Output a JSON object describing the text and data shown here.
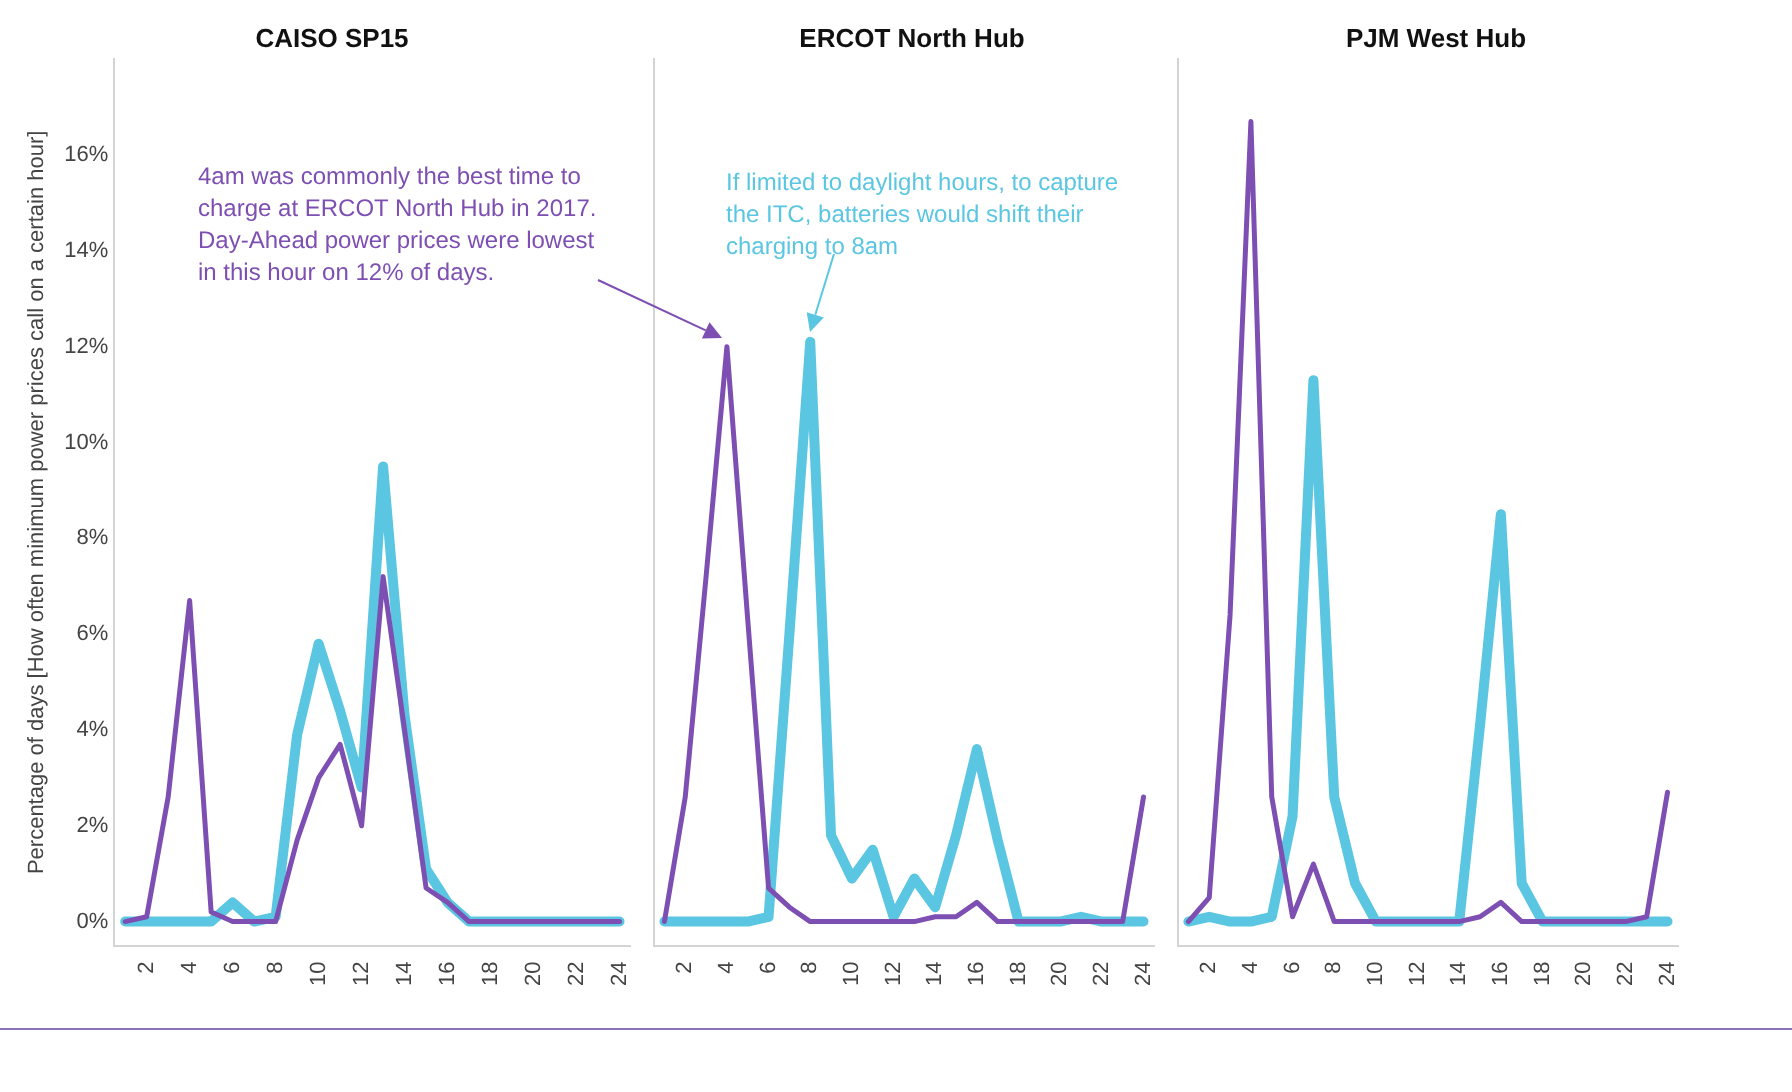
{
  "chart_data": [
    {
      "type": "line",
      "title": "CAISO SP15",
      "ylabel": "Percentage of days [How often minimum power prices call on a certain hour]",
      "x": [
        1,
        2,
        3,
        4,
        5,
        6,
        7,
        8,
        9,
        10,
        11,
        12,
        13,
        14,
        15,
        16,
        17,
        18,
        19,
        20,
        21,
        22,
        23,
        24
      ],
      "xlim": [
        0.5,
        24.5
      ],
      "xticks": [
        2,
        4,
        6,
        8,
        10,
        12,
        14,
        16,
        18,
        20,
        22,
        24
      ],
      "ylim": [
        -0.5,
        18
      ],
      "yticks": [
        {
          "value": 0,
          "label": "0%"
        },
        {
          "value": 2,
          "label": "2%"
        },
        {
          "value": 4,
          "label": "4%"
        },
        {
          "value": 6,
          "label": "6%"
        },
        {
          "value": 8,
          "label": "8%"
        },
        {
          "value": 10,
          "label": "10%"
        },
        {
          "value": 12,
          "label": "12%"
        },
        {
          "value": 14,
          "label": "14%"
        },
        {
          "value": 16,
          "label": "16%"
        }
      ],
      "marker": "none",
      "series": [
        {
          "color": "#7e4fb2",
          "values": [
            0,
            0.1,
            2.6,
            6.7,
            0.2,
            0,
            0,
            0,
            1.7,
            3.0,
            3.7,
            2.0,
            7.2,
            4.0,
            0.7,
            0.4,
            0,
            0,
            0,
            0,
            0,
            0,
            0,
            0
          ]
        },
        {
          "color": "#5bc6e2",
          "values": [
            0,
            0,
            0,
            0,
            0,
            0.4,
            0,
            0.1,
            3.9,
            5.8,
            4.4,
            2.8,
            9.5,
            4.3,
            1.1,
            0.4,
            0,
            0,
            0,
            0,
            0,
            0,
            0,
            0
          ]
        }
      ]
    },
    {
      "type": "line",
      "title": "ERCOT North Hub",
      "tick_labels": "x",
      "x": [
        1,
        2,
        3,
        4,
        5,
        6,
        7,
        8,
        9,
        10,
        11,
        12,
        13,
        14,
        15,
        16,
        17,
        18,
        19,
        20,
        21,
        22,
        23,
        24
      ],
      "xlim": [
        0.5,
        24.5
      ],
      "xticks": [
        2,
        4,
        6,
        8,
        10,
        12,
        14,
        16,
        18,
        20,
        22,
        24
      ],
      "ylim": [
        -0.5,
        18
      ],
      "marker": "none",
      "annotations": [
        "4am was commonly the best time to charge at ERCOT North Hub in 2017. Day-Ahead power prices were lowest in this hour on 12% of days.",
        "If limited to daylight hours, to capture the ITC, batteries would shift their charging to 8am"
      ],
      "series": [
        {
          "color": "#7e4fb2",
          "values": [
            0,
            2.6,
            7.2,
            12.0,
            6.3,
            0.7,
            0.3,
            0,
            0,
            0,
            0,
            0,
            0,
            0.1,
            0.1,
            0.4,
            0,
            0,
            0,
            0,
            0,
            0,
            0,
            2.6
          ]
        },
        {
          "color": "#5bc6e2",
          "values": [
            0,
            0,
            0,
            0,
            0,
            0.1,
            6.0,
            12.1,
            1.8,
            0.9,
            1.5,
            0.1,
            0.9,
            0.3,
            1.8,
            3.6,
            1.7,
            0,
            0,
            0,
            0.1,
            0,
            0,
            0
          ]
        }
      ]
    },
    {
      "type": "line",
      "title": "PJM West Hub",
      "tick_labels": "x",
      "x": [
        1,
        2,
        3,
        4,
        5,
        6,
        7,
        8,
        9,
        10,
        11,
        12,
        13,
        14,
        15,
        16,
        17,
        18,
        19,
        20,
        21,
        22,
        23,
        24
      ],
      "xlim": [
        0.5,
        24.5
      ],
      "xticks": [
        2,
        4,
        6,
        8,
        10,
        12,
        14,
        16,
        18,
        20,
        22,
        24
      ],
      "ylim": [
        -0.5,
        18
      ],
      "marker": "none",
      "series": [
        {
          "color": "#7e4fb2",
          "values": [
            0,
            0.5,
            6.4,
            16.7,
            2.6,
            0.1,
            1.2,
            0,
            0,
            0,
            0,
            0,
            0,
            0,
            0.1,
            0.4,
            0,
            0,
            0,
            0,
            0,
            0,
            0.1,
            2.7
          ]
        },
        {
          "color": "#5bc6e2",
          "values": [
            0,
            0.1,
            0,
            0,
            0.1,
            2.2,
            11.3,
            2.6,
            0.8,
            0,
            0,
            0,
            0,
            0,
            4.1,
            8.5,
            0.8,
            0,
            0,
            0,
            0,
            0,
            0,
            0
          ]
        }
      ]
    }
  ]
}
